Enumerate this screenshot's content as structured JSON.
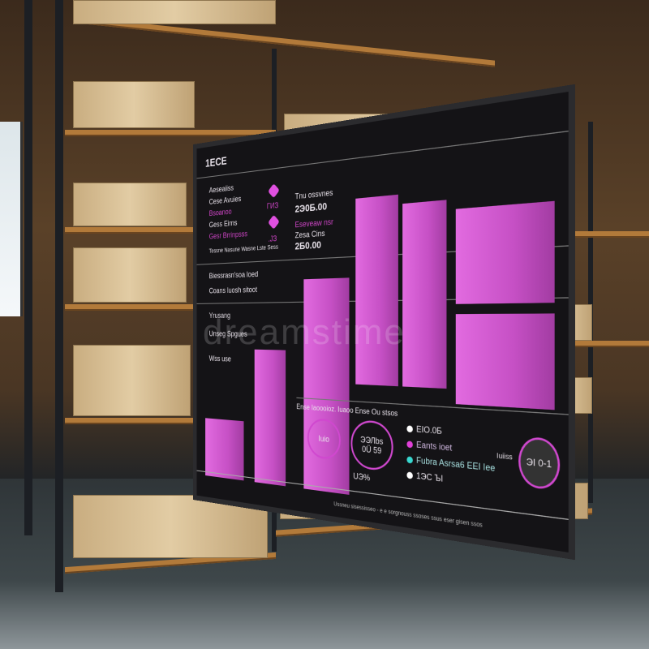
{
  "screen": {
    "title": "1ЕСЕ",
    "left_panel": {
      "lines": [
        "Aeseaiiss",
        "Cese Avuies",
        "Bsoanoo",
        "Gess Eirns",
        "Gesr Brrinpsss"
      ],
      "mid_values": [
        "ГИЗ",
        ".JЗ"
      ],
      "right_labels": [
        "Tnu ossvnes",
        "Eseveaw nsr",
        "Zesa Cins"
      ],
      "right_values": [
        "2Э0Б.00",
        "2Б0.00"
      ],
      "footer": "Tessne  Nasune  Wasne Lste  Sess",
      "section_lines": [
        "Biessrasn'soa loed",
        "Coans luosh sitoot",
        "Yrusang",
        "Unseg Spgues",
        "Wss use"
      ]
    },
    "bottom_panel": {
      "header": "Ense Iaoooioz. Iuaoo Ense   Ou stsos",
      "ring1": "Iuio",
      "ring2_top": "ЭЭЛbs",
      "ring2_bottom": "0Ü 59",
      "ring2_pct": "UЭ%",
      "legend": [
        {
          "label": "EIO.0Б",
          "color": "#ffffff"
        },
        {
          "label": "Eants ioet",
          "color": "#e040d8"
        },
        {
          "label": "Fubra Asrsa6 EEI Iee",
          "color": "#38d8d0"
        },
        {
          "label": "1ЭС ЪI",
          "color": "#ffffff"
        }
      ],
      "side_label": "Iuiiss",
      "ring3": "ЭI 0-1",
      "footer": "Ussneu sisessisseo - e e sorgnouss ssoses ssus eser gisen ssos"
    },
    "bar_values": [
      0.25,
      0.45,
      0.6,
      0.85
    ],
    "accent": "#d048cf"
  },
  "watermark": "dreamstime"
}
